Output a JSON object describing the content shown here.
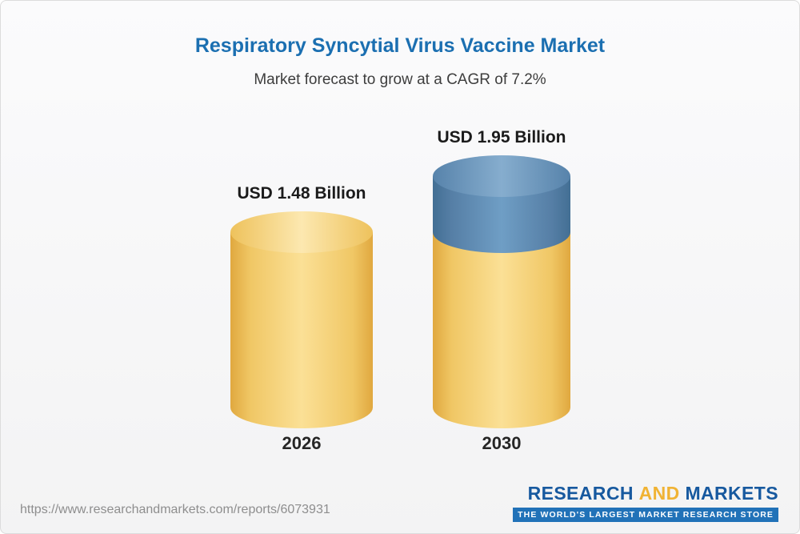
{
  "chart_data": {
    "type": "bar",
    "title": "Respiratory Syncytial Virus Vaccine Market",
    "subtitle": "Market forecast to grow at a CAGR of 7.2%",
    "categories": [
      "2026",
      "2030"
    ],
    "values": [
      1.48,
      1.95
    ],
    "value_labels": [
      "USD 1.48 Billion",
      "USD 1.95 Billion"
    ],
    "unit": "USD Billion",
    "cagr_percent": 7.2,
    "bar_style": "3d-cylinder",
    "legend": "none",
    "grid": false,
    "colors": {
      "base_segment": "#F2C96B",
      "growth_segment": "#6B9AC2",
      "title": "#1B6FB1"
    }
  },
  "footer": {
    "url": "https://www.researchandmarkets.com/reports/6073931",
    "logo": {
      "research": "RESEARCH",
      "and": "AND",
      "markets": "MARKETS",
      "tagline": "THE WORLD'S LARGEST MARKET RESEARCH STORE"
    }
  }
}
